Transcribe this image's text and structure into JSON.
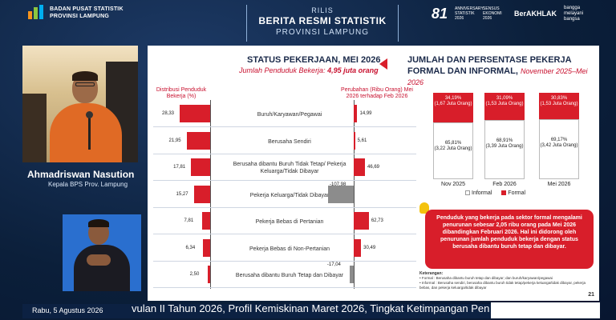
{
  "header": {
    "org_line1": "BADAN PUSAT STATISTIK",
    "org_line2": "PROVINSI LAMPUNG",
    "title_line1": "RILIS",
    "title_line2": "BERITA RESMI STATISTIK",
    "title_line3": "PROVINSI LAMPUNG",
    "sponsor_num": "81",
    "sponsor_small": "ANNIVERSARY STATISTIK 2026",
    "sponsor_sensus": "SENSUS EKONOMI 2026",
    "sponsor_berakhlak": "BerAKHLAK",
    "sponsor_bangga": "bangga melayani bangsa"
  },
  "speaker": {
    "name": "Ahmadriswan Nasution",
    "role": "Kepala BPS Prov. Lampung"
  },
  "slide": {
    "left_title": "STATUS PEKERJAAN, MEI 2026",
    "left_subtitle_prefix": "Jumlah Penduduk Bekerja: ",
    "left_subtitle_value": "4,95 juta orang",
    "left_col_head": "Distribusi Penduduk Bekerja (%)",
    "right_col_head": "Perubahan (Ribu Orang) Mei 2026 terhadap Feb 2026",
    "right_title": "JUMLAH DAN PERSENTASE PEKERJA FORMAL DAN INFORMAL, ",
    "right_title_period": "November 2025–Mei 2026",
    "page_number": "21",
    "note": "Penduduk yang bekerja pada sektor formal mengalami penurunan sebesar 2,05 ribu orang pada Mei 2026 dibandingkan Februari 2026. Hal ini didorong oleh penurunan jumlah penduduk bekerja dengan status berusaha dibantu buruh tetap dan dibayar.",
    "keterangan_head": "Keterangan:",
    "keterangan_formal": "• Formal : Berusaha dibantu buruh tetap dan dibayar; dan buruh/karyawan/pegawai",
    "keterangan_informal": "• Informal : Berusaha sendiri, berusaha dibantu buruh tidak tetap/pekerja keluarga/tidak dibayar, pekerja bebas, dan pekerja keluarga/tidak dibayar",
    "legend_informal": "Informal",
    "legend_formal": "Formal"
  },
  "chart_data": [
    {
      "type": "bar",
      "categories": [
        "Buruh/Karyawan/Pegawai",
        "Berusaha Sendiri",
        "Berusaha dibantu Buruh Tidak Tetap/ Pekerja Keluarga/Tidak Dibayar",
        "Pekerja Keluarga/Tidak Dibayar",
        "Pekerja Bebas di Pertanian",
        "Pekerja Bebas di Non-Pertanian",
        "Berusaha dibantu Buruh Tetap dan Dibayar"
      ],
      "series": [
        {
          "name": "Distribusi Penduduk Bekerja (%)",
          "values": [
            28.33,
            21.95,
            17.81,
            15.27,
            7.81,
            6.34,
            2.5
          ],
          "labels": [
            "28,33",
            "21,95",
            "17,81",
            "15,27",
            "7,81",
            "6,34",
            "2,50"
          ]
        },
        {
          "name": "Perubahan (Ribu Orang) Mei 2026 terhadap Feb 2026",
          "values": [
            14.99,
            5.61,
            46.69,
            -107.98,
            62.73,
            30.49,
            -17.04
          ],
          "labels": [
            "14,99",
            "5,61",
            "46,69",
            "-107,98",
            "62,73",
            "30,49",
            "-17,04"
          ]
        }
      ]
    },
    {
      "type": "bar",
      "stacked": true,
      "categories": [
        "Nov 2025",
        "Feb 2026",
        "Mei 2026"
      ],
      "series": [
        {
          "name": "Formal",
          "values": [
            34.19,
            31.09,
            30.83
          ],
          "labels": [
            "34,19%",
            "31,09%",
            "30,83%"
          ],
          "counts": [
            "(1,67 Juta Orang)",
            "(1,53 Juta Orang)",
            "(1,53 Juta Orang)"
          ],
          "color": "#d81e2a"
        },
        {
          "name": "Informal",
          "values": [
            65.81,
            68.91,
            69.17
          ],
          "labels": [
            "65,81%",
            "68,91%",
            "69,17%"
          ],
          "counts": [
            "(3,22 Juta Orang)",
            "(3,39 Juta Orang)",
            "(3,42 Juta Orang)"
          ],
          "color": "#ffffff"
        }
      ],
      "ylim": [
        0,
        100
      ]
    }
  ],
  "footer": {
    "date": "Rabu, 5 Agustus 2026",
    "ticker": "vulan II Tahun 2026, Profil Kemiskinan Maret 2026, Tingkat Ketimpangan Pen"
  }
}
